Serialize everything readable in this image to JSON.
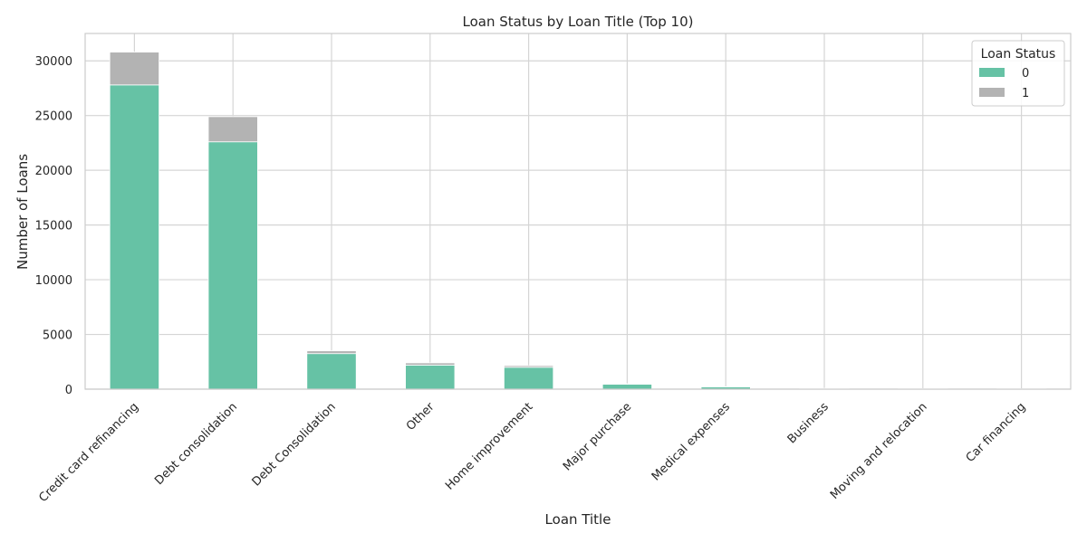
{
  "chart_data": {
    "type": "bar",
    "stacked": true,
    "title": "Loan Status by Loan Title (Top 10)",
    "xlabel": "Loan Title",
    "ylabel": "Number of Loans",
    "categories": [
      "Credit card refinancing",
      "Debt consolidation",
      "Debt Consolidation",
      "Other",
      "Home improvement",
      "Major purchase",
      "Medical expenses",
      "Business",
      "Moving and relocation",
      "Car financing"
    ],
    "series": [
      {
        "name": "0",
        "color": "#66c2a5",
        "values": [
          27800,
          22600,
          3250,
          2200,
          2000,
          450,
          200,
          60,
          40,
          30
        ]
      },
      {
        "name": "1",
        "color": "#b3b3b3",
        "values": [
          3000,
          2300,
          250,
          200,
          150,
          40,
          20,
          10,
          5,
          5
        ]
      }
    ],
    "ylim": [
      0,
      32500
    ],
    "yticks": [
      0,
      5000,
      10000,
      15000,
      20000,
      25000,
      30000
    ],
    "grid": true,
    "legend": {
      "title": "Loan Status",
      "position": "top-right"
    }
  }
}
